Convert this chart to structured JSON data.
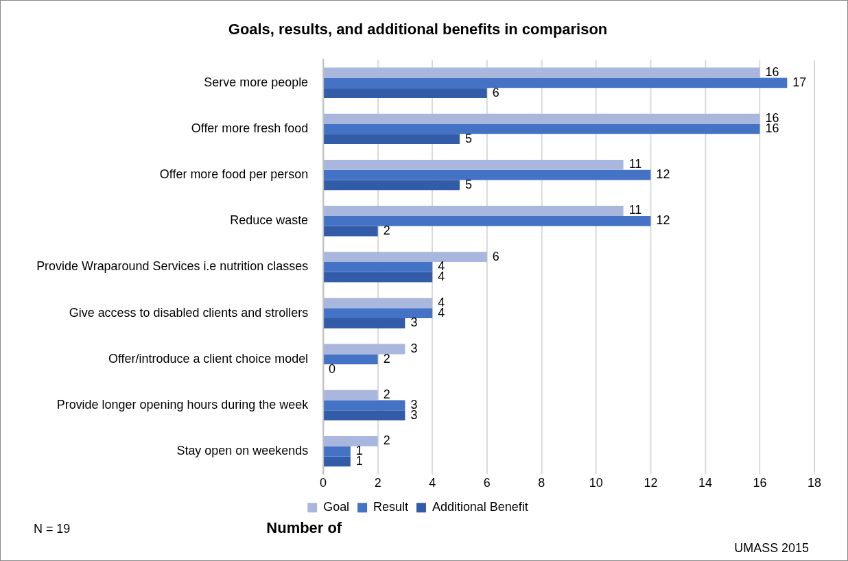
{
  "chart_data": {
    "type": "bar",
    "orientation": "horizontal",
    "title": "Goals, results, and additional benefits in comparison",
    "xlabel": "Number of",
    "categories": [
      "Serve more people",
      "Offer more fresh food",
      "Offer more food per person",
      "Reduce waste",
      "Provide Wraparound Services i.e nutrition classes",
      "Give access to disabled clients and strollers",
      "Offer/introduce a client choice model",
      "Provide longer opening hours during the week",
      "Stay open on weekends"
    ],
    "series": [
      {
        "name": "Goal",
        "color": "#a9b7de",
        "values": [
          16,
          16,
          11,
          11,
          6,
          4,
          3,
          2,
          2
        ]
      },
      {
        "name": "Result",
        "color": "#4472c4",
        "values": [
          17,
          16,
          12,
          12,
          4,
          4,
          2,
          3,
          1
        ]
      },
      {
        "name": "Additional Benefit",
        "color": "#335ca8",
        "values": [
          6,
          5,
          5,
          2,
          4,
          3,
          0,
          3,
          1
        ]
      }
    ],
    "xlim": [
      0,
      18
    ],
    "xticks": [
      0,
      2,
      4,
      6,
      8,
      10,
      12,
      14,
      16,
      18
    ],
    "grid": "x",
    "legend": "bottom",
    "data_labels": true,
    "annotations": [
      "N = 19",
      "UMASS 2015"
    ]
  }
}
